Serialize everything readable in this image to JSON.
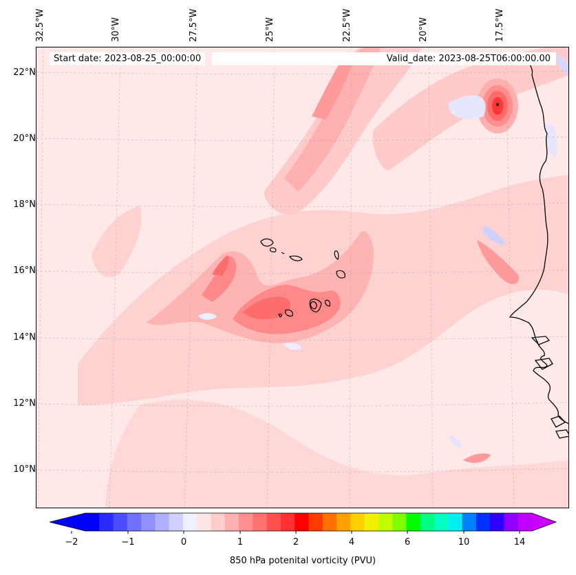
{
  "header": {
    "start_date": "Start date: 2023-08-25_00:00:00",
    "valid_date": "Valid_date: 2023-08-25T06:00:00.00"
  },
  "map": {
    "lon_labels": [
      "32.5°W",
      "30°W",
      "27.5°W",
      "25°W",
      "22.5°W",
      "20°W",
      "17.5°W"
    ],
    "lat_labels": [
      "22°N",
      "20°N",
      "18°N",
      "16°N",
      "14°N",
      "12°N",
      "10°N"
    ],
    "field": "850 hPa potential vorticity",
    "gridlines": true
  },
  "colorbar": {
    "label": "850 hPa potenital vorticity (PVU)",
    "tick_labels": [
      "−2",
      "−1",
      "0",
      "1",
      "2",
      "4",
      "6",
      "10",
      "14"
    ],
    "colors": [
      "#0000ff",
      "#2a2aff",
      "#4d4dff",
      "#7070ff",
      "#9090ff",
      "#b0b0ff",
      "#d0d0ff",
      "#f0f0ff",
      "#ffe6e6",
      "#ffcccc",
      "#ffb0b0",
      "#ff9090",
      "#ff7070",
      "#ff5050",
      "#ff3030",
      "#ff0000",
      "#ff3a00",
      "#ff7000",
      "#ffa000",
      "#ffd000",
      "#f0f000",
      "#c0ff00",
      "#80ff00",
      "#00ff00",
      "#00ff80",
      "#00ffc0",
      "#00f0f0",
      "#0080ff",
      "#0030ff",
      "#3000ff",
      "#9000ff",
      "#c000ff"
    ],
    "extend_low": "#0000ff",
    "extend_high": "#cc00ff"
  }
}
